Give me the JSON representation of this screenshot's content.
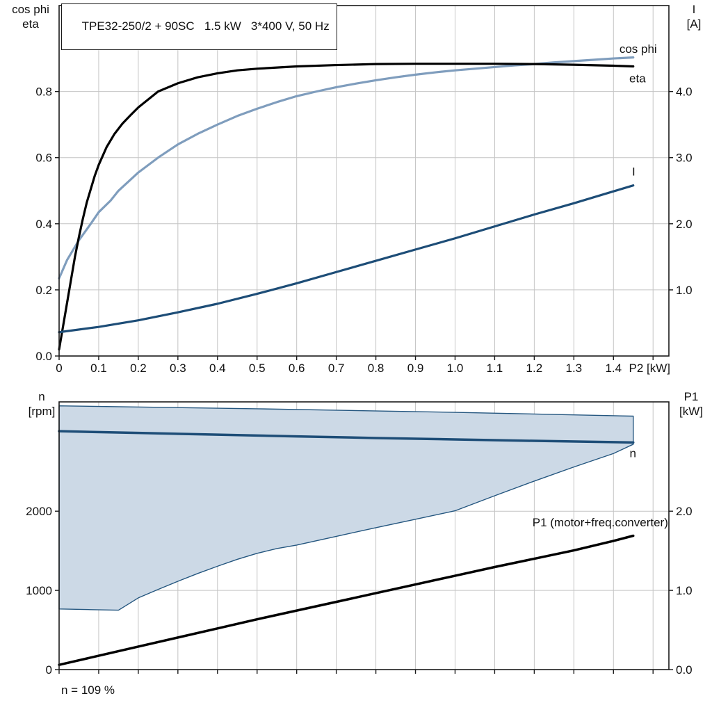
{
  "title_box": {
    "text": "TPE32-250/2 + 90SC   1.5 kW   3*400 V, 50 Hz"
  },
  "footer": {
    "speed_note": "n = 109 %"
  },
  "axis_corner_labels": {
    "top_left": [
      "cos phi",
      "eta"
    ],
    "top_right": [
      "I",
      "[A]"
    ],
    "bottom_left": [
      "n",
      "[rpm]"
    ],
    "bottom_right": [
      "P1",
      "[kW]"
    ]
  },
  "colors": {
    "grid": "#c4c4c4",
    "frame": "#1a1a1a",
    "cos_phi": "#7f9dbd",
    "eta": "#000000",
    "current": "#1d4d77",
    "speed": "#1d4d77",
    "p1": "#000000",
    "band_fill": "#ccd9e6",
    "band_stroke": "#24567f"
  },
  "chart_data": [
    {
      "type": "line",
      "name": "motor-electrical-curves",
      "title": "TPE32-250/2 + 90SC   1.5 kW   3*400 V, 50 Hz",
      "x_axis": {
        "label": "P2 [kW]",
        "min": 0,
        "max": 1.54,
        "ticks": [
          0,
          0.1,
          0.2,
          0.3,
          0.4,
          0.5,
          0.6,
          0.7,
          0.8,
          0.9,
          1.0,
          1.1,
          1.2,
          1.3,
          1.4,
          1.5
        ],
        "tick_labels": [
          "0",
          "0.1",
          "0.2",
          "0.3",
          "0.4",
          "0.5",
          "0.6",
          "0.7",
          "0.8",
          "0.9",
          "1.0",
          "1.1",
          "1.2",
          "1.3",
          "1.4",
          ""
        ]
      },
      "y_left": {
        "label": "cos phi / eta",
        "min": 0,
        "max": 1.06,
        "ticks": [
          0,
          0.2,
          0.4,
          0.6,
          0.8
        ],
        "tick_labels": [
          "0.0",
          "0.2",
          "0.4",
          "0.6",
          "0.8"
        ]
      },
      "y_right": {
        "label": "I [A]",
        "min": 0,
        "max": 5.3,
        "ticks": [
          1,
          2,
          3,
          4
        ],
        "tick_labels": [
          "1.0",
          "2.0",
          "3.0",
          "4.0"
        ]
      },
      "series": [
        {
          "id": "cos-phi",
          "name": "cos phi",
          "axis": "left",
          "color_key": "cos_phi",
          "width": 3.2,
          "points": [
            [
              0,
              0.235
            ],
            [
              0.02,
              0.29
            ],
            [
              0.05,
              0.35
            ],
            [
              0.08,
              0.4
            ],
            [
              0.1,
              0.435
            ],
            [
              0.13,
              0.47
            ],
            [
              0.15,
              0.5
            ],
            [
              0.2,
              0.555
            ],
            [
              0.25,
              0.6
            ],
            [
              0.3,
              0.64
            ],
            [
              0.35,
              0.672
            ],
            [
              0.4,
              0.7
            ],
            [
              0.45,
              0.726
            ],
            [
              0.5,
              0.748
            ],
            [
              0.55,
              0.768
            ],
            [
              0.6,
              0.786
            ],
            [
              0.65,
              0.8
            ],
            [
              0.7,
              0.813
            ],
            [
              0.75,
              0.824
            ],
            [
              0.8,
              0.834
            ],
            [
              0.85,
              0.843
            ],
            [
              0.9,
              0.851
            ],
            [
              0.95,
              0.858
            ],
            [
              1.0,
              0.864
            ],
            [
              1.05,
              0.869
            ],
            [
              1.1,
              0.874
            ],
            [
              1.15,
              0.879
            ],
            [
              1.2,
              0.883
            ],
            [
              1.25,
              0.888
            ],
            [
              1.3,
              0.892
            ],
            [
              1.35,
              0.896
            ],
            [
              1.4,
              0.9
            ],
            [
              1.45,
              0.903
            ]
          ]
        },
        {
          "id": "eta",
          "name": "eta",
          "axis": "left",
          "color_key": "eta",
          "width": 3.2,
          "points": [
            [
              0,
              0.02
            ],
            [
              0.01,
              0.09
            ],
            [
              0.02,
              0.16
            ],
            [
              0.03,
              0.23
            ],
            [
              0.04,
              0.3
            ],
            [
              0.05,
              0.36
            ],
            [
              0.06,
              0.415
            ],
            [
              0.07,
              0.465
            ],
            [
              0.08,
              0.505
            ],
            [
              0.09,
              0.545
            ],
            [
              0.1,
              0.578
            ],
            [
              0.12,
              0.632
            ],
            [
              0.14,
              0.672
            ],
            [
              0.16,
              0.703
            ],
            [
              0.18,
              0.728
            ],
            [
              0.2,
              0.752
            ],
            [
              0.25,
              0.8
            ],
            [
              0.3,
              0.825
            ],
            [
              0.35,
              0.843
            ],
            [
              0.4,
              0.855
            ],
            [
              0.45,
              0.864
            ],
            [
              0.5,
              0.869
            ],
            [
              0.6,
              0.876
            ],
            [
              0.7,
              0.88
            ],
            [
              0.8,
              0.883
            ],
            [
              0.9,
              0.884
            ],
            [
              1.0,
              0.884
            ],
            [
              1.1,
              0.884
            ],
            [
              1.2,
              0.883
            ],
            [
              1.3,
              0.881
            ],
            [
              1.4,
              0.878
            ],
            [
              1.45,
              0.876
            ]
          ]
        },
        {
          "id": "current",
          "name": "I",
          "axis": "right",
          "color_key": "current",
          "width": 3.2,
          "points": [
            [
              0,
              0.36
            ],
            [
              0.1,
              0.44
            ],
            [
              0.2,
              0.54
            ],
            [
              0.3,
              0.66
            ],
            [
              0.4,
              0.79
            ],
            [
              0.5,
              0.94
            ],
            [
              0.6,
              1.1
            ],
            [
              0.7,
              1.27
            ],
            [
              0.8,
              1.44
            ],
            [
              0.9,
              1.61
            ],
            [
              1.0,
              1.78
            ],
            [
              1.1,
              1.96
            ],
            [
              1.2,
              2.14
            ],
            [
              1.3,
              2.31
            ],
            [
              1.4,
              2.49
            ],
            [
              1.45,
              2.58
            ]
          ]
        }
      ],
      "annotations": [
        {
          "id": "cos-phi-label",
          "text": "cos phi",
          "x": 1.415,
          "y": 0.917,
          "axis": "left",
          "color_key": "cos_phi",
          "anchor": "start"
        },
        {
          "id": "eta-label",
          "text": "eta",
          "x": 1.44,
          "y": 0.828,
          "axis": "left",
          "color_key": "eta",
          "anchor": "start"
        },
        {
          "id": "current-label",
          "text": "I",
          "x": 1.447,
          "y": 2.73,
          "axis": "right",
          "color_key": "current",
          "anchor": "start"
        }
      ]
    },
    {
      "type": "line+area",
      "name": "speed-and-power-curves",
      "x_axis": {
        "label": "",
        "min": 0,
        "max": 1.54,
        "ticks": [
          0,
          0.1,
          0.2,
          0.3,
          0.4,
          0.5,
          0.6,
          0.7,
          0.8,
          0.9,
          1.0,
          1.1,
          1.2,
          1.3,
          1.4,
          1.5
        ],
        "tick_labels": [
          "",
          "",
          "",
          "",
          "",
          "",
          "",
          "",
          "",
          "",
          "",
          "",
          "",
          "",
          "",
          ""
        ]
      },
      "y_left": {
        "label": "n [rpm]",
        "min": 0,
        "max": 3380,
        "ticks": [
          0,
          1000,
          2000
        ],
        "tick_labels": [
          "0",
          "1000",
          "2000"
        ]
      },
      "y_right": {
        "label": "P1 [kW]",
        "min": 0,
        "max": 3.38,
        "ticks": [
          0,
          1,
          2
        ],
        "tick_labels": [
          "0.0",
          "1.0",
          "2.0"
        ]
      },
      "band": {
        "name": "speed-control-range",
        "upper": [
          [
            0,
            3330
          ],
          [
            0.5,
            3293
          ],
          [
            1.0,
            3248
          ],
          [
            1.45,
            3200
          ]
        ],
        "lower": [
          [
            0,
            765
          ],
          [
            0.08,
            757
          ],
          [
            0.15,
            750
          ],
          [
            0.2,
            905
          ],
          [
            0.25,
            1012
          ],
          [
            0.3,
            1115
          ],
          [
            0.35,
            1213
          ],
          [
            0.4,
            1305
          ],
          [
            0.45,
            1392
          ],
          [
            0.5,
            1468
          ],
          [
            0.55,
            1528
          ],
          [
            0.6,
            1572
          ],
          [
            0.7,
            1682
          ],
          [
            0.8,
            1792
          ],
          [
            0.9,
            1898
          ],
          [
            1.0,
            2005
          ],
          [
            1.1,
            2195
          ],
          [
            1.2,
            2380
          ],
          [
            1.3,
            2558
          ],
          [
            1.4,
            2728
          ],
          [
            1.45,
            2845
          ]
        ]
      },
      "series": [
        {
          "id": "speed",
          "name": "n",
          "axis": "left",
          "color_key": "speed",
          "width": 3.5,
          "points": [
            [
              0,
              3010
            ],
            [
              0.2,
              2988
            ],
            [
              0.4,
              2966
            ],
            [
              0.6,
              2944
            ],
            [
              0.8,
              2924
            ],
            [
              1.0,
              2906
            ],
            [
              1.2,
              2888
            ],
            [
              1.4,
              2872
            ],
            [
              1.45,
              2868
            ]
          ]
        },
        {
          "id": "p1",
          "name": "P1 (motor+freq.converter)",
          "axis": "right",
          "color_key": "p1",
          "width": 3.5,
          "points": [
            [
              0,
              0.06
            ],
            [
              0.1,
              0.175
            ],
            [
              0.2,
              0.29
            ],
            [
              0.3,
              0.405
            ],
            [
              0.4,
              0.52
            ],
            [
              0.5,
              0.635
            ],
            [
              0.6,
              0.745
            ],
            [
              0.7,
              0.855
            ],
            [
              0.8,
              0.965
            ],
            [
              0.9,
              1.075
            ],
            [
              1.0,
              1.185
            ],
            [
              1.1,
              1.295
            ],
            [
              1.2,
              1.4
            ],
            [
              1.3,
              1.505
            ],
            [
              1.4,
              1.625
            ],
            [
              1.45,
              1.69
            ]
          ]
        }
      ],
      "annotations": [
        {
          "id": "speed-label",
          "text": "n",
          "x": 1.449,
          "y": 2680,
          "axis": "left",
          "color_key": "speed",
          "anchor": "middle"
        },
        {
          "id": "p1-label",
          "text": "P1 (motor+freq.converter)",
          "x": 1.538,
          "y": 1.81,
          "axis": "right",
          "color_key": "p1",
          "anchor": "end"
        }
      ]
    }
  ]
}
